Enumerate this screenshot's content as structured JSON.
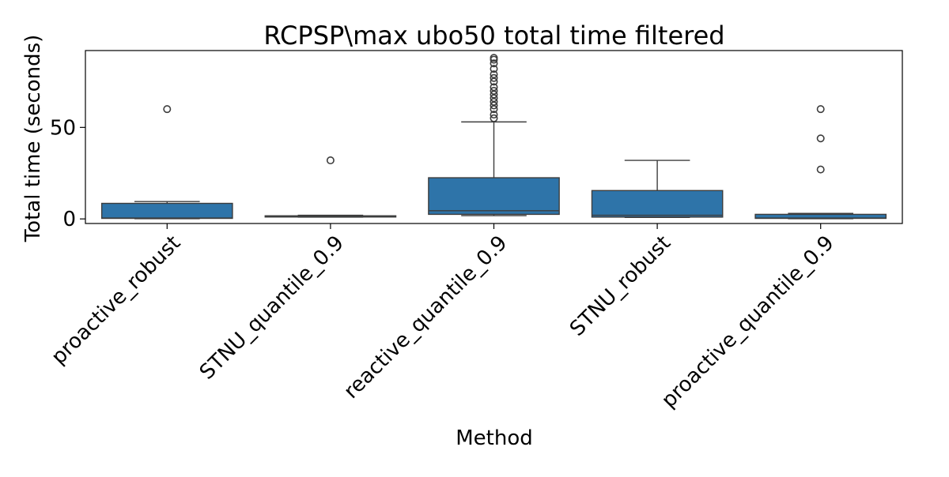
{
  "chart_data": {
    "type": "box",
    "title": "RCPSP\\max ubo50 total time filtered",
    "xlabel": "Method",
    "ylabel": "Total time (seconds)",
    "ylim": [
      -2.5,
      92
    ],
    "yticks": [
      0,
      50
    ],
    "grid": false,
    "box_color": "#2e74a9",
    "line_color": "#3d3d3d",
    "categories": [
      "proactive_robust",
      "STNU_quantile_0.9",
      "reactive_quantile_0.9",
      "STNU_robust",
      "proactive_quantile_0.9"
    ],
    "boxes": [
      {
        "whisker_low": 0.1,
        "q1": 0.3,
        "median": 0.5,
        "q3": 8.5,
        "whisker_high": 9.5,
        "outliers": [
          60
        ]
      },
      {
        "whisker_low": 1.0,
        "q1": 1.3,
        "median": 1.5,
        "q3": 1.7,
        "whisker_high": 2.0,
        "outliers": [
          32
        ]
      },
      {
        "whisker_low": 1.8,
        "q1": 2.5,
        "median": 4.5,
        "q3": 22.5,
        "whisker_high": 53,
        "outliers": [
          55,
          57,
          60,
          62,
          64,
          66,
          68,
          70,
          72,
          75,
          77,
          79,
          82,
          85,
          87,
          88
        ]
      },
      {
        "whisker_low": 0.8,
        "q1": 1.0,
        "median": 2.0,
        "q3": 15.5,
        "whisker_high": 32,
        "outliers": []
      },
      {
        "whisker_low": 0.1,
        "q1": 0.3,
        "median": 0.5,
        "q3": 2.5,
        "whisker_high": 3.0,
        "outliers": [
          27,
          44,
          60
        ]
      }
    ]
  }
}
